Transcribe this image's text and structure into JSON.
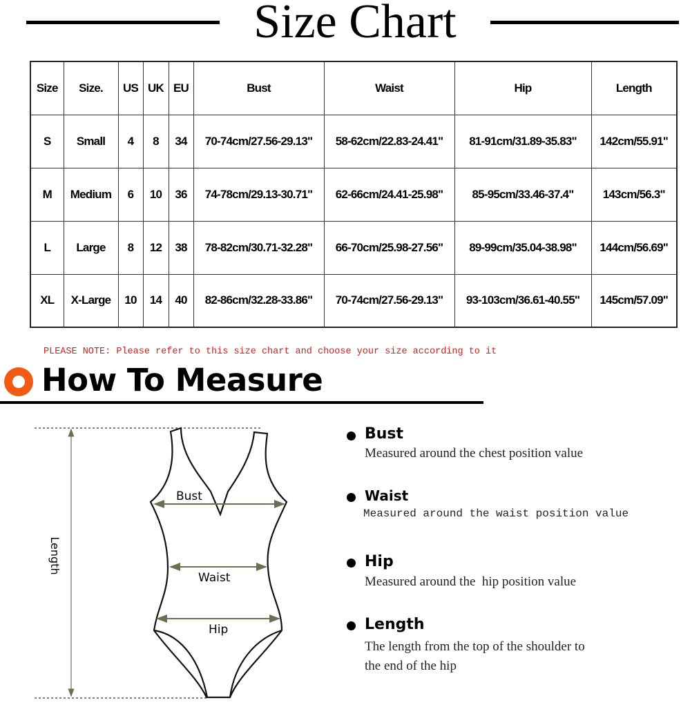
{
  "header": {
    "title": "Size Chart"
  },
  "table": {
    "headers": [
      "Size",
      "Size.",
      "US",
      "UK",
      "EU",
      "Bust",
      "Waist",
      "Hip",
      "Length"
    ],
    "rows": [
      [
        "S",
        "Small",
        "4",
        "8",
        "34",
        "70-74cm/27.56-29.13\"",
        "58-62cm/22.83-24.41\"",
        "81-91cm/31.89-35.83\"",
        "142cm/55.91\""
      ],
      [
        "M",
        "Medium",
        "6",
        "10",
        "36",
        "74-78cm/29.13-30.71\"",
        "62-66cm/24.41-25.98\"",
        "85-95cm/33.46-37.4\"",
        "143cm/56.3\""
      ],
      [
        "L",
        "Large",
        "8",
        "12",
        "38",
        "78-82cm/30.71-32.28\"",
        "66-70cm/25.98-27.56\"",
        "89-99cm/35.04-38.98\"",
        "144cm/56.69\""
      ],
      [
        "XL",
        "X-Large",
        "10",
        "14",
        "40",
        "82-86cm/32.28-33.86\"",
        "70-74cm/27.56-29.13\"",
        "93-103cm/36.61-40.55\"",
        "145cm/57.09\""
      ]
    ]
  },
  "note": "PLEASE NOTE: Please refer to this size chart and choose your size according to it",
  "how_to_measure": {
    "title": "How To Measure",
    "icon": "orange-ring-icon",
    "accent": "#f05a13",
    "diagram_labels": {
      "bust": "Bust",
      "waist": "Waist",
      "hip": "Hip",
      "length": "Length"
    },
    "items": [
      {
        "title": "Bust",
        "desc": "Measured around the chest position value"
      },
      {
        "title": "Waist",
        "desc": "Measured around the waist position value"
      },
      {
        "title": "Hip",
        "desc": "Measured around the  hip position value"
      },
      {
        "title": "Length",
        "desc": "The length from the top of the shoulder to",
        "desc2": "the end of the hip"
      }
    ]
  }
}
